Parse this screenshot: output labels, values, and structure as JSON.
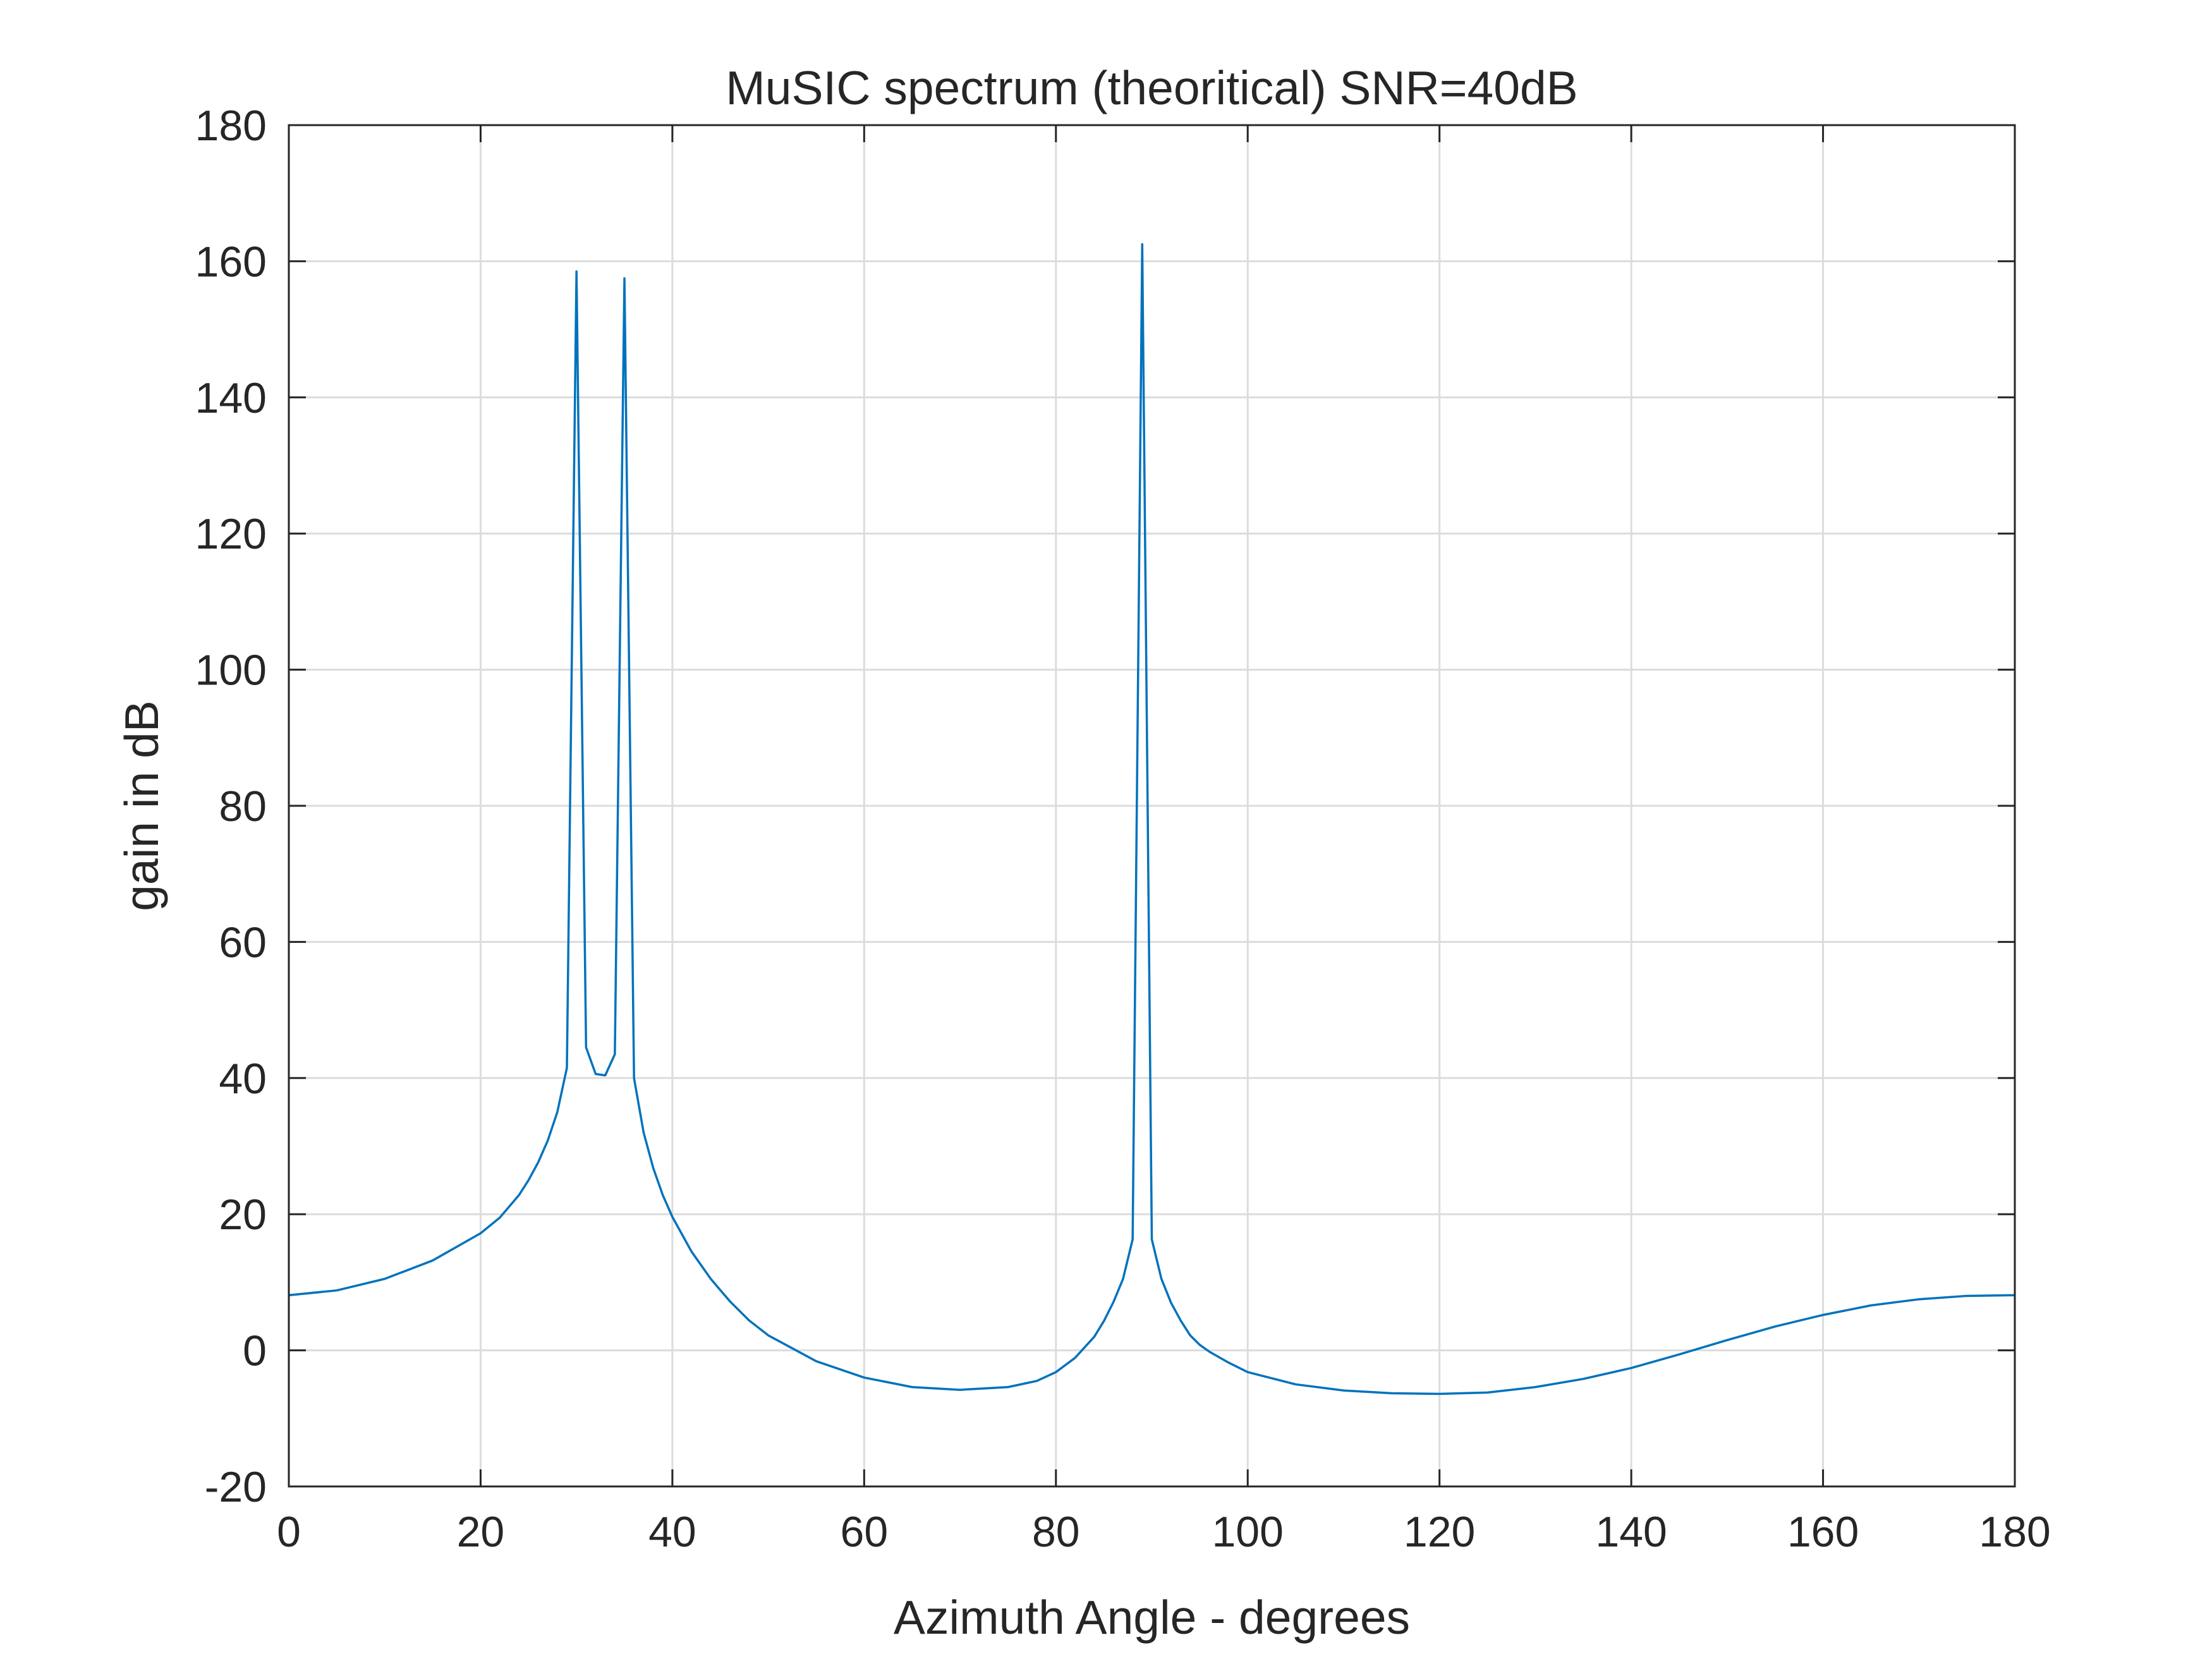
{
  "chart_data": {
    "type": "line",
    "title": "MuSIC spectrum (theoritical) SNR=40dB",
    "xlabel": "Azimuth Angle - degrees",
    "ylabel": "gain in dB",
    "xlim": [
      0,
      180
    ],
    "ylim": [
      -20,
      180
    ],
    "xticks": [
      "0",
      "20",
      "40",
      "60",
      "80",
      "100",
      "120",
      "140",
      "160",
      "180"
    ],
    "yticks": [
      "-20",
      "0",
      "20",
      "40",
      "60",
      "80",
      "100",
      "120",
      "140",
      "160",
      "180"
    ],
    "grid": true,
    "colors": {
      "series": "#0072BD"
    },
    "series": [
      {
        "x": [
          0,
          5,
          10,
          15,
          20,
          22,
          24,
          25,
          26,
          27,
          28,
          29,
          30,
          31,
          32,
          33,
          34,
          35,
          36,
          37,
          38,
          39,
          40,
          42,
          44,
          46,
          48,
          50,
          55,
          60,
          65,
          70,
          75,
          78,
          80,
          82,
          84,
          85,
          86,
          87,
          88,
          89,
          90,
          91,
          92,
          93,
          94,
          95,
          96,
          98,
          100,
          105,
          110,
          115,
          120,
          125,
          130,
          135,
          140,
          145,
          150,
          155,
          160,
          165,
          170,
          175,
          180
        ],
        "y": [
          8.1,
          8.8,
          10.5,
          13.2,
          17.2,
          19.5,
          22.8,
          25.0,
          27.6,
          30.8,
          35.0,
          41.5,
          158.5,
          44.5,
          40.6,
          40.4,
          43.5,
          157.5,
          40.0,
          32.0,
          26.8,
          22.8,
          19.6,
          14.5,
          10.5,
          7.2,
          4.4,
          2.2,
          -1.6,
          -4.0,
          -5.4,
          -5.8,
          -5.4,
          -4.5,
          -3.2,
          -1.1,
          2.0,
          4.3,
          7.1,
          10.5,
          16.3,
          162.5,
          16.3,
          10.5,
          7.0,
          4.4,
          2.2,
          0.8,
          -0.2,
          -1.8,
          -3.2,
          -5.0,
          -5.9,
          -6.3,
          -6.4,
          -6.2,
          -5.4,
          -4.2,
          -2.6,
          -0.6,
          1.5,
          3.5,
          5.2,
          6.6,
          7.5,
          8.0,
          8.1
        ]
      }
    ]
  }
}
